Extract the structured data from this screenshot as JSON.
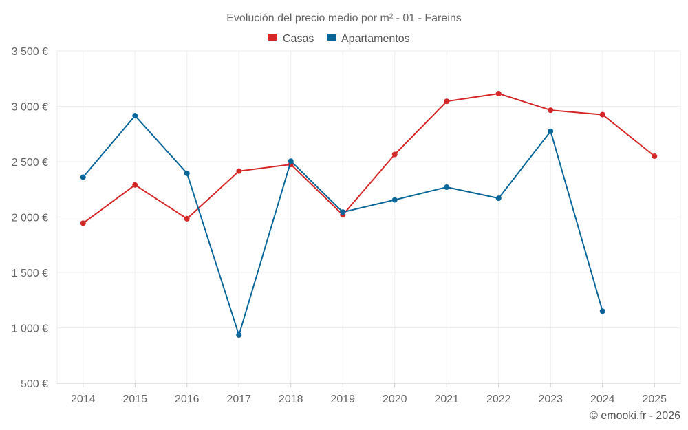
{
  "chart_data": {
    "type": "line",
    "title": "Evolución del precio medio por m² - 01 - Fareins",
    "xlabel": "",
    "ylabel": "",
    "categories": [
      "2014",
      "2015",
      "2016",
      "2017",
      "2018",
      "2019",
      "2020",
      "2021",
      "2022",
      "2023",
      "2024",
      "2025"
    ],
    "ylim": [
      500,
      3500
    ],
    "yticks": [
      500,
      1000,
      1500,
      2000,
      2500,
      3000,
      3500
    ],
    "ytick_labels": [
      "500 €",
      "1 000 €",
      "1 500 €",
      "2 000 €",
      "2 500 €",
      "3 000 €",
      "3 500 €"
    ],
    "grid": true,
    "legend_position": "top-center",
    "series": [
      {
        "name": "Casas",
        "color": "#d62728",
        "values": [
          1945,
          2290,
          1985,
          2415,
          2475,
          2020,
          2565,
          3045,
          3115,
          2965,
          2925,
          2550
        ]
      },
      {
        "name": "Apartamentos",
        "color": "#0a6699",
        "values": [
          2360,
          2915,
          2395,
          935,
          2505,
          2045,
          2155,
          2270,
          2170,
          2775,
          1150,
          null
        ]
      }
    ]
  },
  "credit": "© emooki.fr - 2026"
}
